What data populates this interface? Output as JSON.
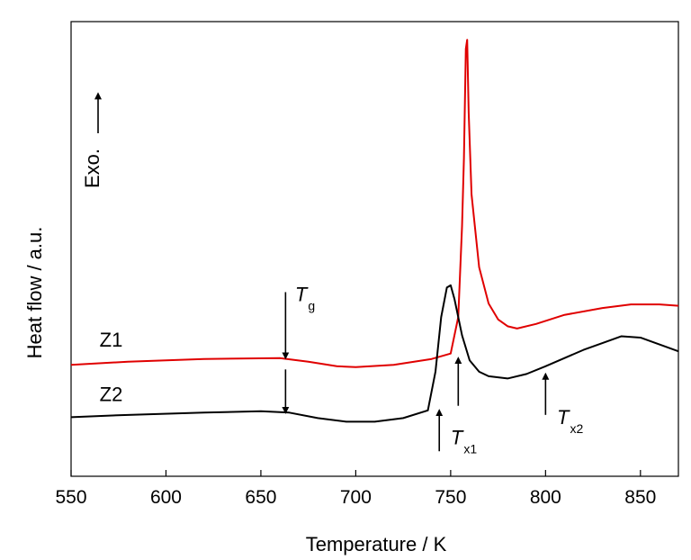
{
  "chart_data": {
    "type": "line",
    "xlabel": "Temperature / K",
    "ylabel": "Heat flow / a.u.",
    "xlim": [
      550,
      870
    ],
    "ylim": [
      0,
      10
    ],
    "x_ticks": [
      550,
      600,
      650,
      700,
      750,
      800,
      850
    ],
    "y_tick_labels": "none",
    "grid": false,
    "exo_label": "Exo.",
    "exo_direction": "up",
    "series": [
      {
        "name": "Z1",
        "color": "#e00000",
        "x": [
          550,
          580,
          620,
          660,
          675,
          690,
          700,
          720,
          740,
          750,
          754,
          756,
          757,
          758,
          758.7,
          759.5,
          761,
          765,
          770,
          775,
          780,
          785,
          795,
          810,
          830,
          845,
          860,
          870
        ],
        "y": [
          2.45,
          2.52,
          2.58,
          2.6,
          2.52,
          2.42,
          2.4,
          2.45,
          2.58,
          2.7,
          3.5,
          5.5,
          7.0,
          9.4,
          9.6,
          8.0,
          6.2,
          4.6,
          3.8,
          3.45,
          3.3,
          3.25,
          3.35,
          3.55,
          3.7,
          3.78,
          3.78,
          3.75
        ]
      },
      {
        "name": "Z2",
        "color": "#000000",
        "x": [
          550,
          580,
          620,
          650,
          665,
          680,
          695,
          710,
          725,
          738,
          742,
          745,
          748,
          750,
          752,
          756,
          760,
          765,
          770,
          780,
          790,
          800,
          820,
          840,
          850,
          860,
          870
        ],
        "y": [
          1.3,
          1.35,
          1.4,
          1.43,
          1.4,
          1.28,
          1.2,
          1.2,
          1.28,
          1.45,
          2.3,
          3.5,
          4.15,
          4.2,
          3.9,
          3.1,
          2.55,
          2.3,
          2.2,
          2.15,
          2.25,
          2.42,
          2.78,
          3.08,
          3.05,
          2.9,
          2.75
        ]
      }
    ],
    "series_labels": [
      {
        "text": "Z1",
        "x": 565,
        "y": 2.85
      },
      {
        "text": "Z2",
        "x": 565,
        "y": 1.65
      }
    ],
    "annotations": [
      {
        "label_main": "T",
        "label_sub": "g",
        "arrow_x": 663,
        "arrow_from_y": 4.05,
        "arrow_to_y": 2.6,
        "text_x": 668,
        "text_y": 3.85,
        "direction": "down"
      },
      {
        "label_main": "",
        "label_sub": "",
        "arrow_x": 663,
        "arrow_from_y": 2.35,
        "arrow_to_y": 1.4,
        "text_x": 0,
        "text_y": 0,
        "direction": "down"
      },
      {
        "label_main": "T",
        "label_sub": "x1",
        "arrow_x": 744,
        "arrow_from_y": 0.55,
        "arrow_to_y": 1.45,
        "text_x": 750,
        "text_y": 0.7,
        "direction": "up"
      },
      {
        "label_main": "",
        "label_sub": "",
        "arrow_x": 754,
        "arrow_from_y": 1.55,
        "arrow_to_y": 2.6,
        "text_x": 0,
        "text_y": 0,
        "direction": "up"
      },
      {
        "label_main": "T",
        "label_sub": "x2",
        "arrow_x": 800,
        "arrow_from_y": 1.35,
        "arrow_to_y": 2.25,
        "text_x": 806,
        "text_y": 1.15,
        "direction": "up"
      }
    ]
  }
}
